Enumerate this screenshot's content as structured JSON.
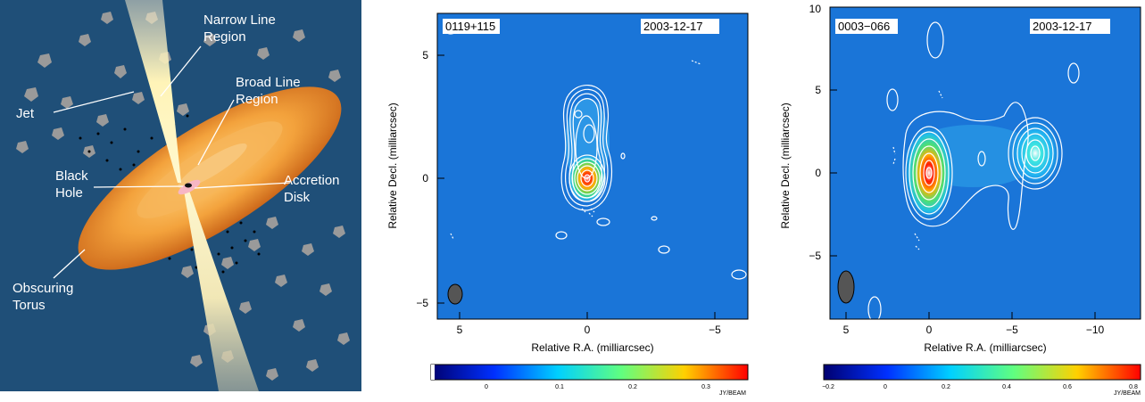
{
  "agn": {
    "labels": {
      "narrow_line_region": [
        "Narrow Line",
        "Region"
      ],
      "broad_line_region": [
        "Broad Line",
        "Region"
      ],
      "jet": "Jet",
      "black_hole": [
        "Black",
        "Hole"
      ],
      "accretion_disk": [
        "Accretion",
        "Disk"
      ],
      "obscuring_torus": [
        "Obscuring",
        "Torus"
      ]
    }
  },
  "map1": {
    "source": "0119+115",
    "date": "2003-12-17",
    "xlabel": "Relative R.A. (milliarcsec)",
    "ylabel": "Relative Decl. (milliarcsec)",
    "xticks": [
      "5",
      "0",
      "−5"
    ],
    "yticks": [
      "5",
      "0",
      "−5"
    ],
    "colorbar_ticks": [
      "0",
      "0.1",
      "0.2",
      "0.3"
    ],
    "colorbar_unit": "JY/BEAM"
  },
  "map2": {
    "source": "0003−066",
    "date": "2003-12-17",
    "xlabel": "Relative R.A. (milliarcsec)",
    "ylabel": "Relative Decl. (milliarcsec)",
    "xticks": [
      "5",
      "0",
      "−5",
      "−10"
    ],
    "yticks": [
      "10",
      "5",
      "0",
      "−5"
    ],
    "colorbar_ticks": [
      "−0.2",
      "0",
      "0.2",
      "0.4",
      "0.6",
      "0.8"
    ],
    "colorbar_unit": "JY/BEAM"
  },
  "colors": {
    "agn_background": "#1f4f78",
    "map_background": "#1a75d8",
    "contour": "#ffffff",
    "torus": "#e8922a",
    "beam": "#555555"
  }
}
